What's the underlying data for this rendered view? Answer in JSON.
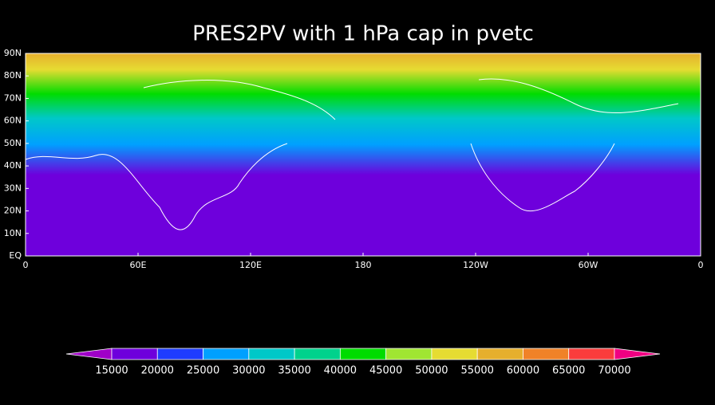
{
  "title": "PRES2PV with 1 hPa cap in pvetc",
  "lat_labels": [
    "90N",
    "80N",
    "70N",
    "60N",
    "50N",
    "40N",
    "30N",
    "20N",
    "10N",
    "EQ"
  ],
  "lon_labels": [
    "0",
    "60E",
    "120E",
    "180",
    "120W",
    "60W",
    "0"
  ],
  "colorbar": {
    "levels": [
      15000,
      20000,
      25000,
      30000,
      35000,
      40000,
      45000,
      50000,
      55000,
      60000,
      65000,
      70000
    ],
    "colors": [
      "#a000c8",
      "#6e00dc",
      "#1e3cff",
      "#00a0ff",
      "#00c8c8",
      "#00d28c",
      "#00dc00",
      "#a0e632",
      "#e6dc32",
      "#e6af2d",
      "#f08228",
      "#fa3c3c",
      "#f00082"
    ]
  }
}
